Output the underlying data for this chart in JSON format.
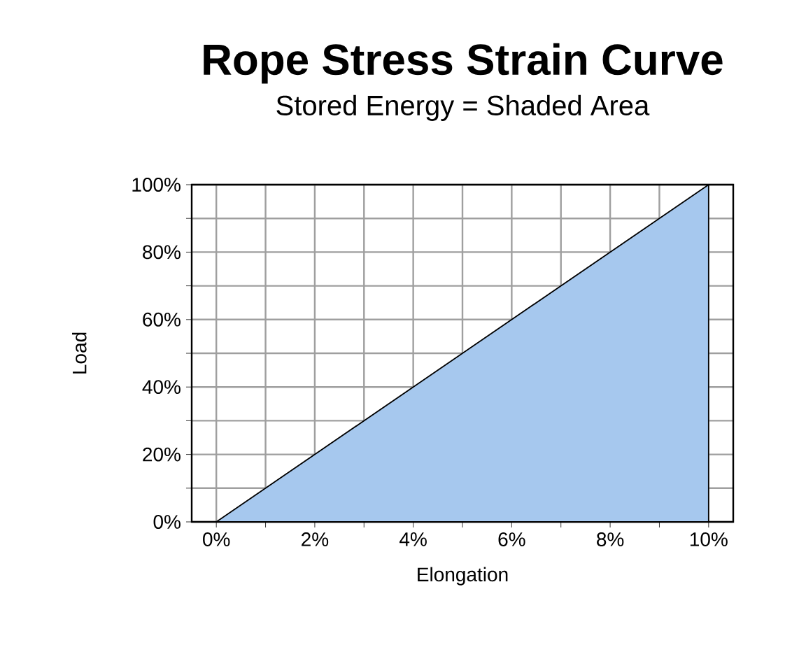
{
  "chart_data": {
    "type": "area",
    "title": "Rope Stress Strain Curve",
    "subtitle": "Stored Energy = Shaded Area",
    "xlabel": "Elongation",
    "ylabel": "Load",
    "series": [
      {
        "x": [
          0,
          10
        ],
        "values": [
          0,
          100
        ],
        "color": "#a6c8ee"
      }
    ],
    "xlim": [
      -0.5,
      10.5
    ],
    "ylim": [
      0,
      100
    ],
    "xticks": [
      {
        "value": 0,
        "label": "0%"
      },
      {
        "value": 1,
        "label": null
      },
      {
        "value": 2,
        "label": "2%"
      },
      {
        "value": 3,
        "label": null
      },
      {
        "value": 4,
        "label": "4%"
      },
      {
        "value": 5,
        "label": null
      },
      {
        "value": 6,
        "label": "6%"
      },
      {
        "value": 7,
        "label": null
      },
      {
        "value": 8,
        "label": "8%"
      },
      {
        "value": 9,
        "label": null
      },
      {
        "value": 10,
        "label": "10%"
      }
    ],
    "yticks": [
      {
        "value": 0,
        "label": "0%"
      },
      {
        "value": 10,
        "label": null
      },
      {
        "value": 20,
        "label": "20%"
      },
      {
        "value": 30,
        "label": null
      },
      {
        "value": 40,
        "label": "40%"
      },
      {
        "value": 50,
        "label": null
      },
      {
        "value": 60,
        "label": "60%"
      },
      {
        "value": 70,
        "label": null
      },
      {
        "value": 80,
        "label": "80%"
      },
      {
        "value": 90,
        "label": null
      },
      {
        "value": 100,
        "label": "100%"
      }
    ],
    "grid": true
  }
}
